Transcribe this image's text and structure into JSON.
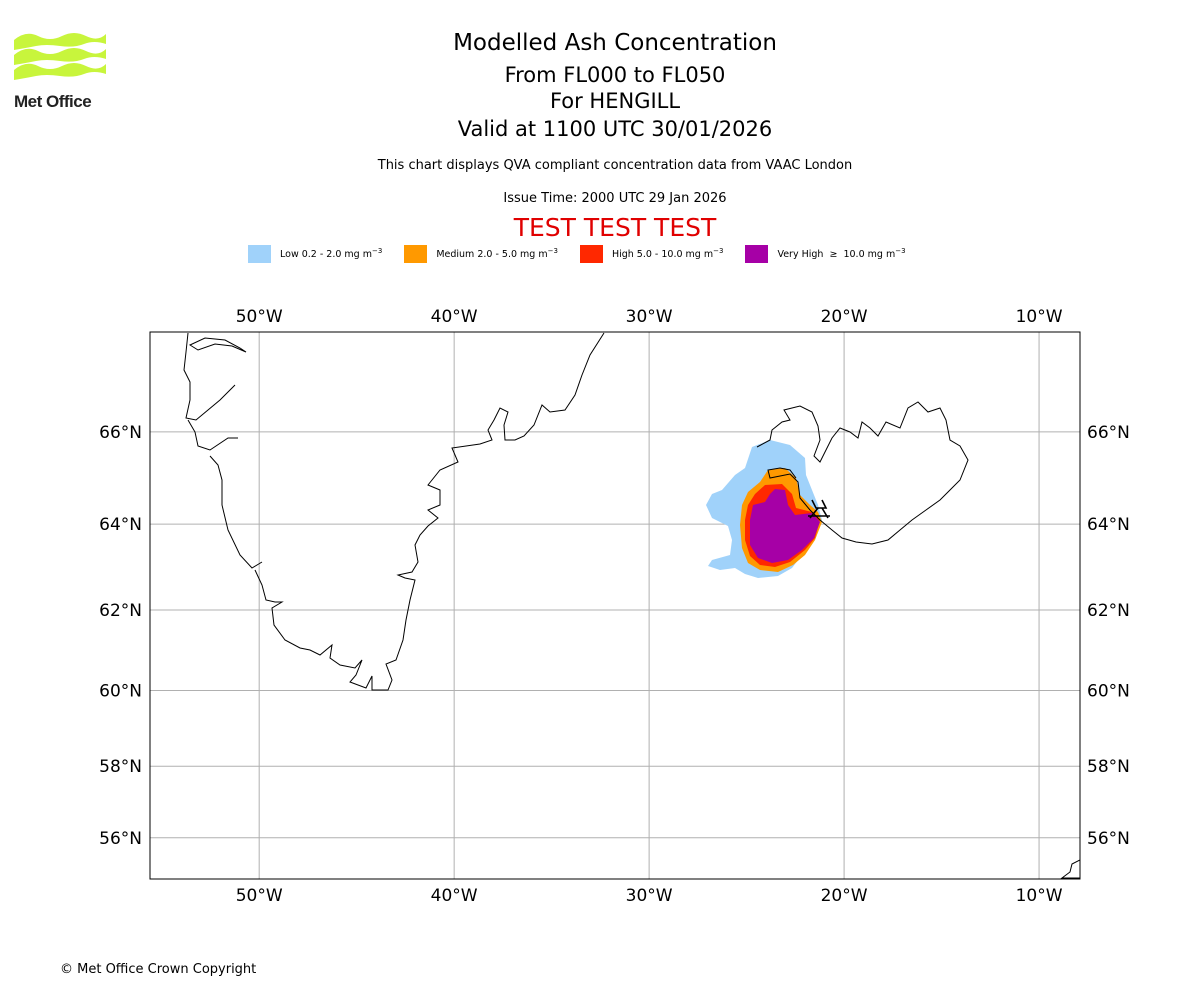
{
  "logo": {
    "brand_text": "Met Office",
    "logo_color": "#c8f53c"
  },
  "title": {
    "line1": "Modelled Ash Concentration",
    "line2": "From FL000 to FL050",
    "line3": "For HENGILL",
    "line4": "Valid at 1100 UTC 30/01/2026"
  },
  "subtitle": "This chart displays QVA compliant concentration data from VAAC London",
  "issue_time": "Issue Time: 2000 UTC 29 Jan 2026",
  "test_banner": "TEST TEST TEST",
  "legend": [
    {
      "label": "Low 0.2 - 2.0 mg m",
      "unit_exp": "−3",
      "color": "#a0d2fa"
    },
    {
      "label": "Medium 2.0 - 5.0 mg m",
      "unit_exp": "−3",
      "color": "#ff9900"
    },
    {
      "label": "High 5.0 - 10.0 mg m",
      "unit_exp": "−3",
      "color": "#ff2800"
    },
    {
      "label": "Very High  ≥  10.0 mg m",
      "unit_exp": "−3",
      "color": "#a600a6"
    }
  ],
  "map": {
    "lon_range": [
      -55.6,
      -7.9
    ],
    "lat_range": [
      54.8,
      68.0
    ],
    "lon_ticks": [
      "50°W",
      "40°W",
      "30°W",
      "20°W",
      "10°W"
    ],
    "lat_ticks": [
      "66°N",
      "64°N",
      "62°N",
      "60°N",
      "58°N",
      "56°N"
    ],
    "volcano": {
      "name": "HENGILL",
      "lon": -21.3,
      "lat": 64.1
    },
    "gridline_color": "#b0b0b0",
    "coastline_color": "#000000"
  },
  "copyright": "© Met Office Crown Copyright"
}
